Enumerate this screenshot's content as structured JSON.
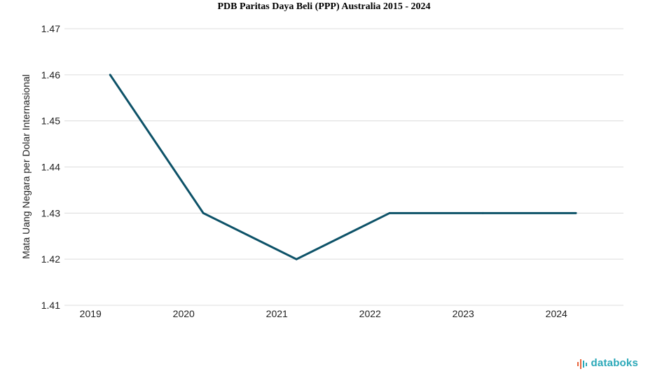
{
  "chart_data": {
    "type": "line",
    "title": "PDB Paritas Daya Beli (PPP) Australia 2015 - 2024",
    "ylabel": "Mata Uang Negara per Dolar Internasional",
    "xlabel": "",
    "x": [
      "2019",
      "2020",
      "2021",
      "2022",
      "2023",
      "2024"
    ],
    "series": [
      {
        "values": [
          1.46,
          1.43,
          1.42,
          1.43,
          1.43,
          1.43
        ]
      }
    ],
    "ylim": [
      1.41,
      1.47
    ],
    "yticks": [
      "1.41",
      "1.42",
      "1.43",
      "1.44",
      "1.45",
      "1.46",
      "1.47"
    ],
    "grid": true,
    "line_color": "#0d5268"
  },
  "brand": {
    "name": "databoks",
    "icon": "bar-signal-icon",
    "color": "#2aa8b8",
    "accent": "#e8643c"
  }
}
